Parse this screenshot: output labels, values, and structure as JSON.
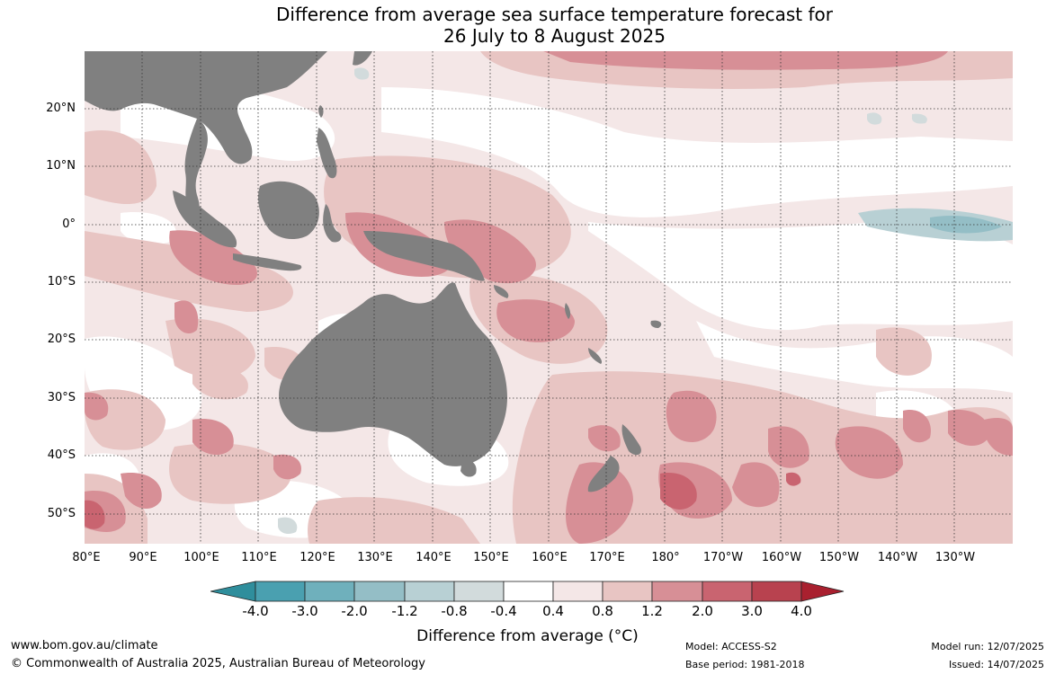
{
  "title": {
    "line1": "Difference from average sea surface temperature forecast for",
    "line2": "26 July to 8 August 2025"
  },
  "map": {
    "lat_labels": [
      "20°N",
      "10°N",
      "0°",
      "10°S",
      "20°S",
      "30°S",
      "40°S",
      "50°S"
    ],
    "lon_labels": [
      "80°E",
      "90°E",
      "100°E",
      "110°E",
      "120°E",
      "130°E",
      "140°E",
      "150°E",
      "160°E",
      "170°E",
      "180°",
      "170°W",
      "160°W",
      "150°W",
      "140°W",
      "130°W"
    ],
    "land_color": "#808080",
    "gridline_style": "dotted"
  },
  "colorbar": {
    "labels": [
      "-4.0",
      "-3.0",
      "-2.0",
      "-1.2",
      "-0.8",
      "-0.4",
      "0.4",
      "0.8",
      "1.2",
      "2.0",
      "3.0",
      "4.0"
    ],
    "colors": [
      "#2f8e9c",
      "#4aa0b0",
      "#6fb0bc",
      "#94bec6",
      "#b8d0d4",
      "#d2dbdc",
      "#ffffff",
      "#f4e7e7",
      "#e8c5c3",
      "#d78f96",
      "#c96470",
      "#b8424f",
      "#a9202f"
    ],
    "title": "Difference from average (°C)"
  },
  "footer": {
    "url": "www.bom.gov.au/climate",
    "copyright": "© Commonwealth of Australia 2025, Australian Bureau of Meteorology",
    "model": "Model: ACCESS-S2",
    "base_period": "Base period: 1981-2018",
    "model_run": "Model run: 12/07/2025",
    "issued": "Issued: 14/07/2025"
  }
}
